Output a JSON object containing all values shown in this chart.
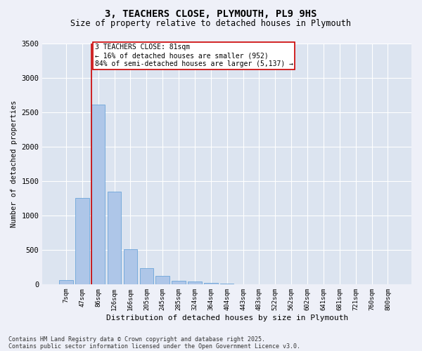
{
  "title_line1": "3, TEACHERS CLOSE, PLYMOUTH, PL9 9HS",
  "title_line2": "Size of property relative to detached houses in Plymouth",
  "xlabel": "Distribution of detached houses by size in Plymouth",
  "ylabel": "Number of detached properties",
  "categories": [
    "7sqm",
    "47sqm",
    "86sqm",
    "126sqm",
    "166sqm",
    "205sqm",
    "245sqm",
    "285sqm",
    "324sqm",
    "364sqm",
    "404sqm",
    "443sqm",
    "483sqm",
    "522sqm",
    "562sqm",
    "602sqm",
    "641sqm",
    "681sqm",
    "721sqm",
    "760sqm",
    "800sqm"
  ],
  "values": [
    55,
    1250,
    2610,
    1340,
    510,
    230,
    120,
    50,
    40,
    15,
    5,
    0,
    0,
    0,
    0,
    0,
    0,
    0,
    0,
    0,
    0
  ],
  "bar_color": "#aec6e8",
  "bar_edge_color": "#5b9bd5",
  "vline_color": "#cc0000",
  "annotation_text": "3 TEACHERS CLOSE: 81sqm\n← 16% of detached houses are smaller (952)\n84% of semi-detached houses are larger (5,137) →",
  "annotation_box_color": "#cc0000",
  "ylim": [
    0,
    3500
  ],
  "yticks": [
    0,
    500,
    1000,
    1500,
    2000,
    2500,
    3000,
    3500
  ],
  "footnote1": "Contains HM Land Registry data © Crown copyright and database right 2025.",
  "footnote2": "Contains public sector information licensed under the Open Government Licence v3.0.",
  "bg_color": "#eef0f8",
  "plot_bg_color": "#dce4f0"
}
